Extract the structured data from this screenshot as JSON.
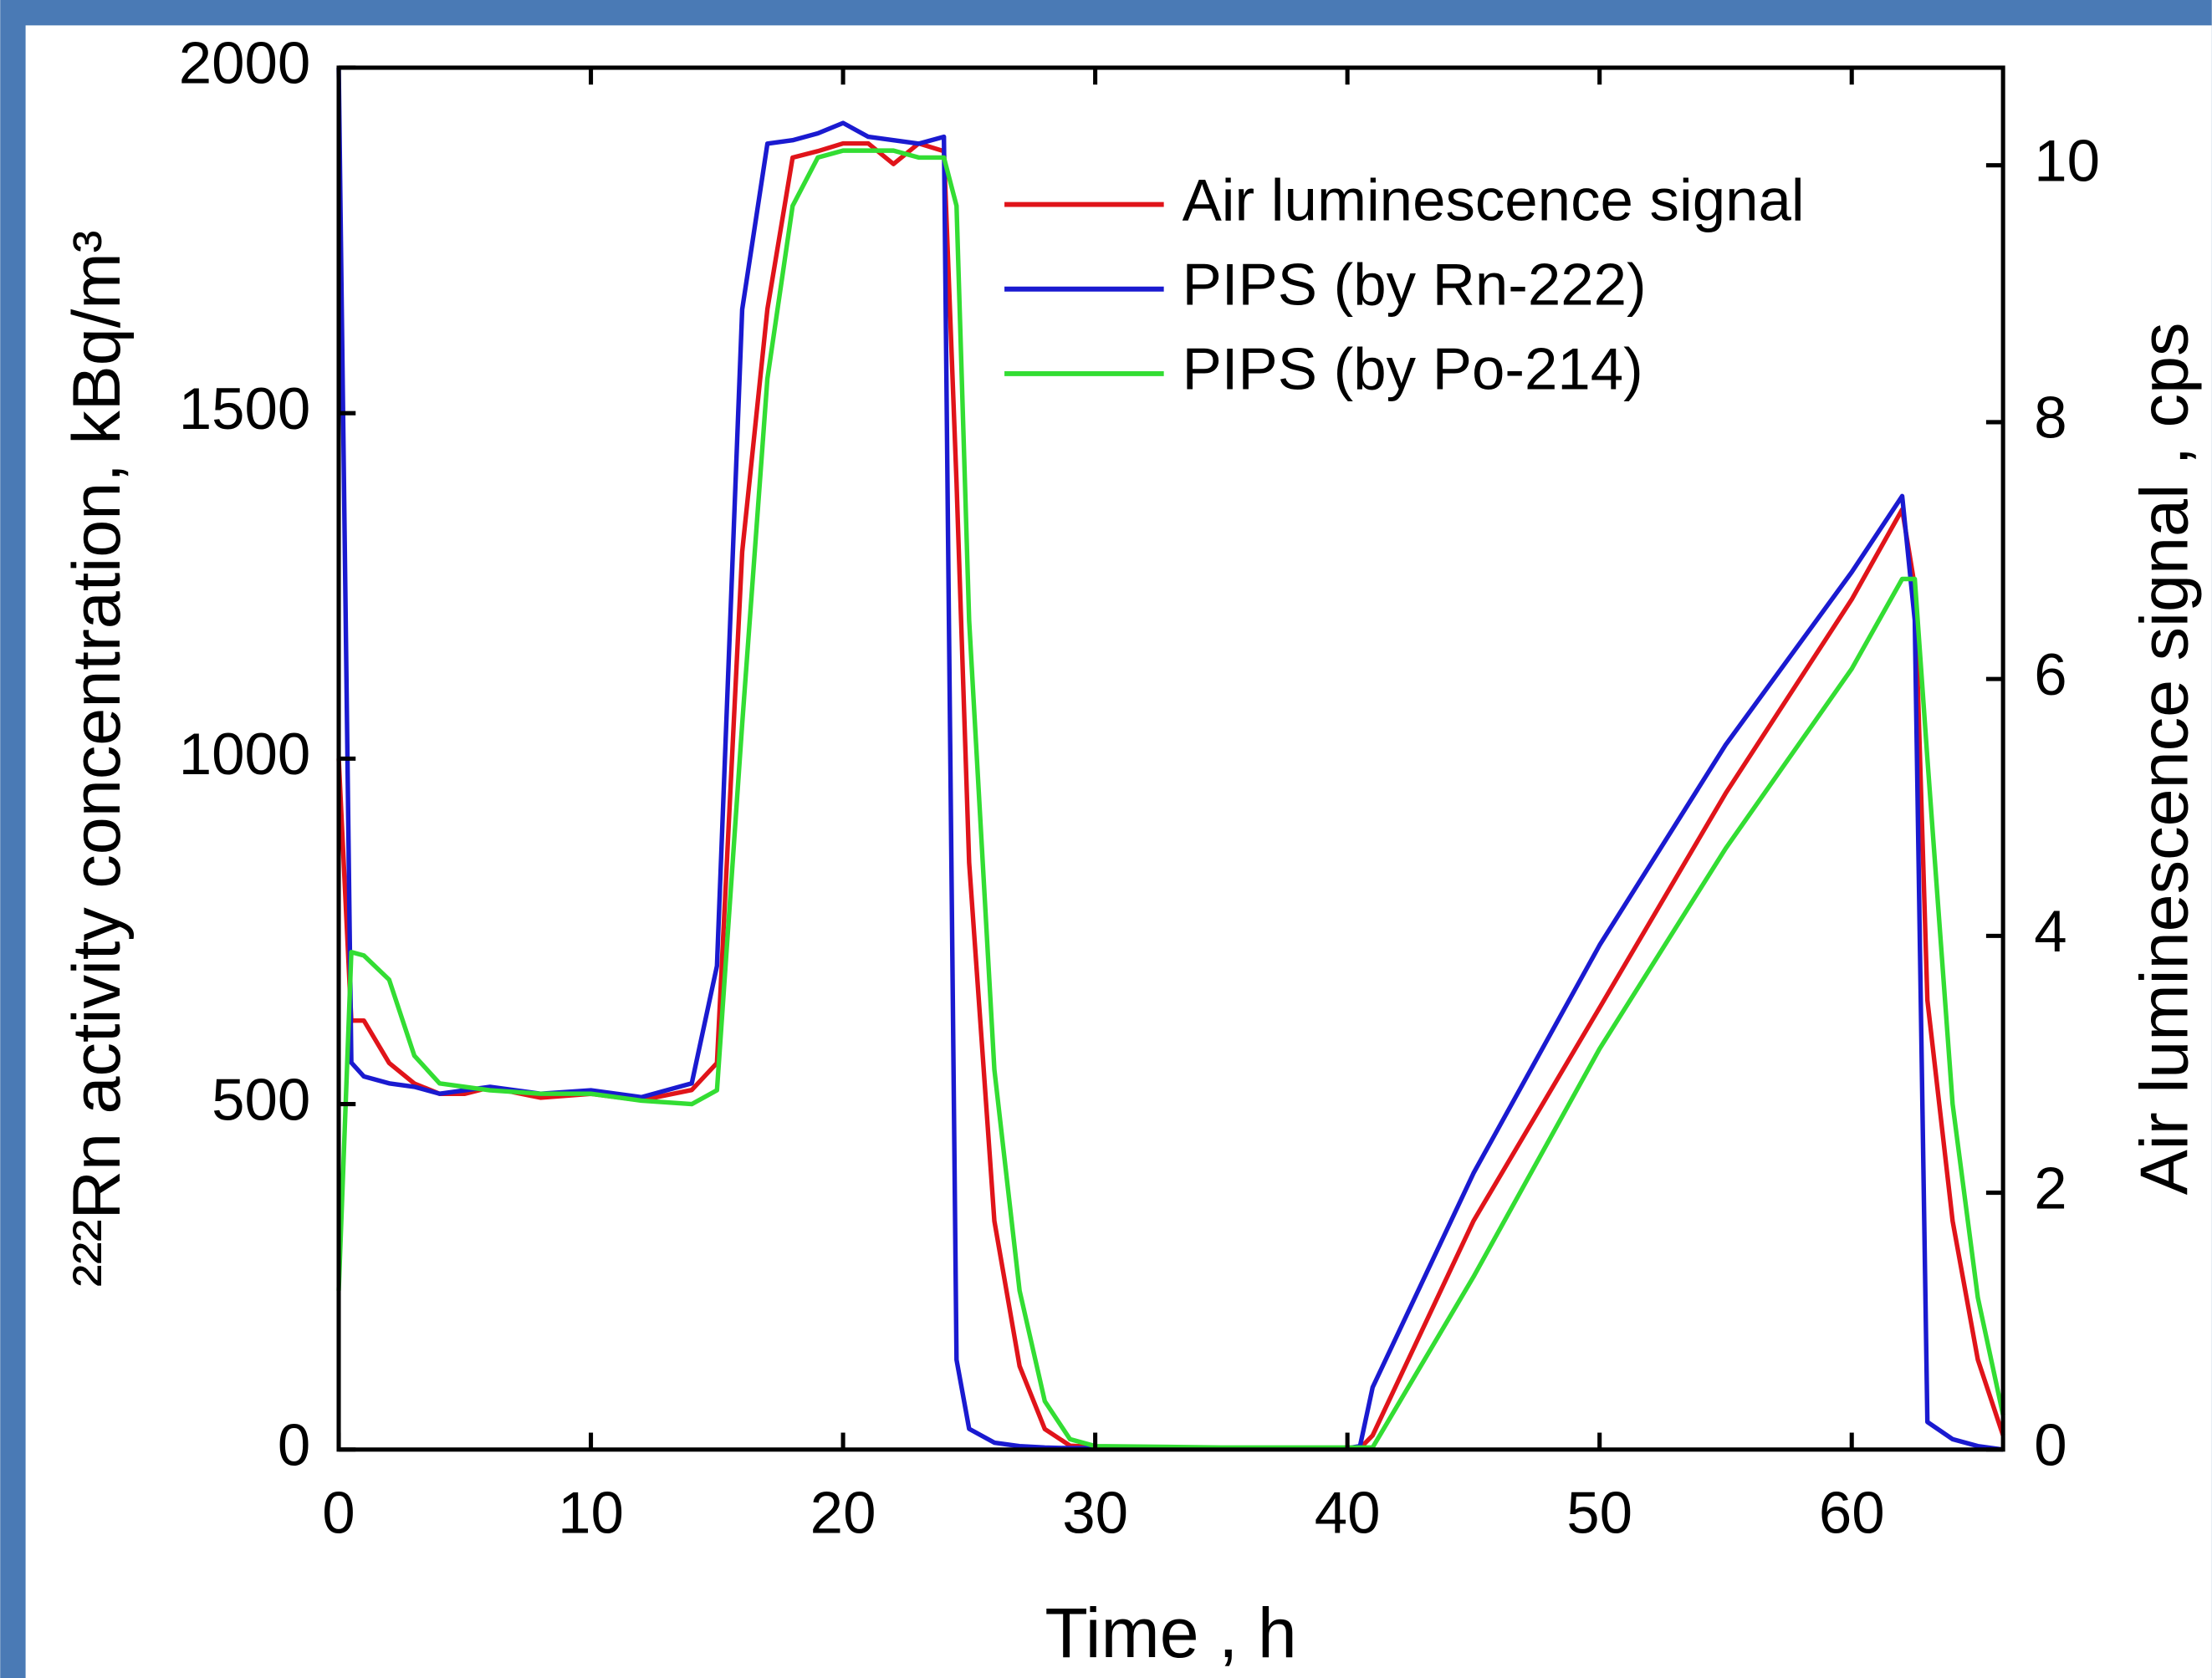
{
  "chart_data": {
    "type": "line",
    "xlabel": "Time , h",
    "ylabel": "²²²Rn activity concentration, kBq/m³",
    "y2label": "Air luminescence signal , cps",
    "y2color": "#e0141a",
    "legend": "upper center",
    "x": [
      0,
      0.5,
      1,
      2,
      3,
      4,
      5,
      6,
      8,
      10,
      12,
      14,
      15,
      16,
      17,
      18,
      19,
      20,
      21,
      22,
      23,
      24,
      24.5,
      25,
      26,
      27,
      28,
      29,
      30,
      35,
      40,
      40.5,
      41,
      45,
      50,
      55,
      60,
      62,
      62.5,
      63,
      64,
      65,
      66
    ],
    "series": [
      {
        "name": "Air luminescence signal",
        "color": "#e0141a",
        "axis": "y2",
        "values": [
          5.38,
          3.34,
          3.34,
          3.01,
          2.85,
          2.77,
          2.77,
          2.82,
          2.74,
          2.77,
          2.72,
          2.8,
          3.01,
          6.99,
          8.88,
          10.06,
          10.11,
          10.17,
          10.17,
          10.01,
          10.17,
          10.11,
          7.53,
          4.57,
          1.78,
          0.65,
          0.16,
          0.03,
          0.02,
          0.01,
          0.01,
          0.01,
          0.11,
          1.78,
          3.44,
          5.11,
          6.62,
          7.32,
          6.72,
          3.5,
          1.78,
          0.7,
          0.11
        ]
      },
      {
        "name": "PIPS (by Rn-222)",
        "color": "#1a1ad0",
        "values": [
          2000,
          560,
          540,
          530,
          525,
          515,
          520,
          525,
          515,
          520,
          510,
          530,
          700,
          1650,
          1890,
          1895,
          1905,
          1920,
          1900,
          1895,
          1890,
          1900,
          130,
          30,
          10,
          5,
          3,
          2,
          2,
          2,
          2,
          5,
          90,
          400,
          730,
          1020,
          1270,
          1380,
          1200,
          40,
          15,
          5,
          0
        ]
      },
      {
        "name": "PIPS (by Po-214)",
        "color": "#33dd33",
        "values": [
          230,
          720,
          715,
          680,
          570,
          530,
          525,
          520,
          515,
          515,
          505,
          500,
          520,
          1050,
          1550,
          1800,
          1870,
          1880,
          1880,
          1880,
          1870,
          1870,
          1800,
          1200,
          550,
          230,
          70,
          15,
          5,
          3,
          3,
          3,
          3,
          250,
          580,
          870,
          1130,
          1260,
          1260,
          1000,
          500,
          220,
          50
        ]
      }
    ],
    "xlim": [
      0,
      66
    ],
    "xticks": [
      0,
      10,
      20,
      30,
      40,
      50,
      60
    ],
    "ylim": [
      0,
      2000
    ],
    "yticks": [
      0,
      500,
      1000,
      1500,
      2000
    ],
    "y2lim": [
      0,
      10.76
    ],
    "y2ticks": [
      0,
      2,
      4,
      6,
      8,
      10
    ]
  }
}
